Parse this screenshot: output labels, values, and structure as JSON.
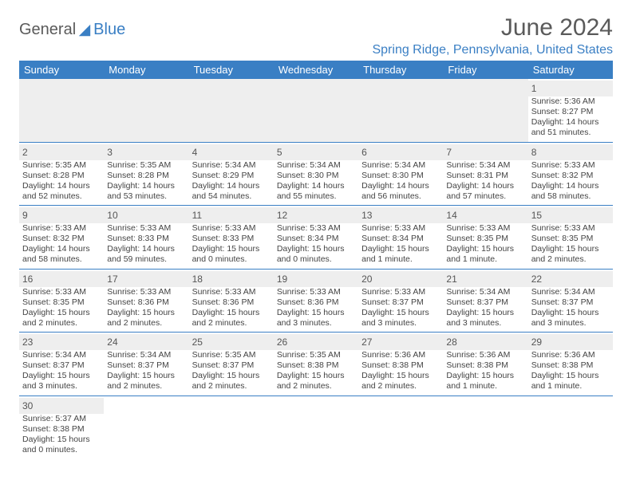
{
  "logo": {
    "general": "General",
    "blue": "Blue"
  },
  "title": "June 2024",
  "location": "Spring Ridge, Pennsylvania, United States",
  "colors": {
    "header_bg": "#3a7fc4",
    "header_text": "#ffffff",
    "daynum_bg": "#eeeeee",
    "text": "#444444",
    "row_divider": "#3a7fc4"
  },
  "weekdays": [
    "Sunday",
    "Monday",
    "Tuesday",
    "Wednesday",
    "Thursday",
    "Friday",
    "Saturday"
  ],
  "weeks": [
    [
      null,
      null,
      null,
      null,
      null,
      null,
      {
        "n": "1",
        "sr": "Sunrise: 5:36 AM",
        "ss": "Sunset: 8:27 PM",
        "d1": "Daylight: 14 hours",
        "d2": "and 51 minutes."
      }
    ],
    [
      {
        "n": "2",
        "sr": "Sunrise: 5:35 AM",
        "ss": "Sunset: 8:28 PM",
        "d1": "Daylight: 14 hours",
        "d2": "and 52 minutes."
      },
      {
        "n": "3",
        "sr": "Sunrise: 5:35 AM",
        "ss": "Sunset: 8:28 PM",
        "d1": "Daylight: 14 hours",
        "d2": "and 53 minutes."
      },
      {
        "n": "4",
        "sr": "Sunrise: 5:34 AM",
        "ss": "Sunset: 8:29 PM",
        "d1": "Daylight: 14 hours",
        "d2": "and 54 minutes."
      },
      {
        "n": "5",
        "sr": "Sunrise: 5:34 AM",
        "ss": "Sunset: 8:30 PM",
        "d1": "Daylight: 14 hours",
        "d2": "and 55 minutes."
      },
      {
        "n": "6",
        "sr": "Sunrise: 5:34 AM",
        "ss": "Sunset: 8:30 PM",
        "d1": "Daylight: 14 hours",
        "d2": "and 56 minutes."
      },
      {
        "n": "7",
        "sr": "Sunrise: 5:34 AM",
        "ss": "Sunset: 8:31 PM",
        "d1": "Daylight: 14 hours",
        "d2": "and 57 minutes."
      },
      {
        "n": "8",
        "sr": "Sunrise: 5:33 AM",
        "ss": "Sunset: 8:32 PM",
        "d1": "Daylight: 14 hours",
        "d2": "and 58 minutes."
      }
    ],
    [
      {
        "n": "9",
        "sr": "Sunrise: 5:33 AM",
        "ss": "Sunset: 8:32 PM",
        "d1": "Daylight: 14 hours",
        "d2": "and 58 minutes."
      },
      {
        "n": "10",
        "sr": "Sunrise: 5:33 AM",
        "ss": "Sunset: 8:33 PM",
        "d1": "Daylight: 14 hours",
        "d2": "and 59 minutes."
      },
      {
        "n": "11",
        "sr": "Sunrise: 5:33 AM",
        "ss": "Sunset: 8:33 PM",
        "d1": "Daylight: 15 hours",
        "d2": "and 0 minutes."
      },
      {
        "n": "12",
        "sr": "Sunrise: 5:33 AM",
        "ss": "Sunset: 8:34 PM",
        "d1": "Daylight: 15 hours",
        "d2": "and 0 minutes."
      },
      {
        "n": "13",
        "sr": "Sunrise: 5:33 AM",
        "ss": "Sunset: 8:34 PM",
        "d1": "Daylight: 15 hours",
        "d2": "and 1 minute."
      },
      {
        "n": "14",
        "sr": "Sunrise: 5:33 AM",
        "ss": "Sunset: 8:35 PM",
        "d1": "Daylight: 15 hours",
        "d2": "and 1 minute."
      },
      {
        "n": "15",
        "sr": "Sunrise: 5:33 AM",
        "ss": "Sunset: 8:35 PM",
        "d1": "Daylight: 15 hours",
        "d2": "and 2 minutes."
      }
    ],
    [
      {
        "n": "16",
        "sr": "Sunrise: 5:33 AM",
        "ss": "Sunset: 8:35 PM",
        "d1": "Daylight: 15 hours",
        "d2": "and 2 minutes."
      },
      {
        "n": "17",
        "sr": "Sunrise: 5:33 AM",
        "ss": "Sunset: 8:36 PM",
        "d1": "Daylight: 15 hours",
        "d2": "and 2 minutes."
      },
      {
        "n": "18",
        "sr": "Sunrise: 5:33 AM",
        "ss": "Sunset: 8:36 PM",
        "d1": "Daylight: 15 hours",
        "d2": "and 2 minutes."
      },
      {
        "n": "19",
        "sr": "Sunrise: 5:33 AM",
        "ss": "Sunset: 8:36 PM",
        "d1": "Daylight: 15 hours",
        "d2": "and 3 minutes."
      },
      {
        "n": "20",
        "sr": "Sunrise: 5:33 AM",
        "ss": "Sunset: 8:37 PM",
        "d1": "Daylight: 15 hours",
        "d2": "and 3 minutes."
      },
      {
        "n": "21",
        "sr": "Sunrise: 5:34 AM",
        "ss": "Sunset: 8:37 PM",
        "d1": "Daylight: 15 hours",
        "d2": "and 3 minutes."
      },
      {
        "n": "22",
        "sr": "Sunrise: 5:34 AM",
        "ss": "Sunset: 8:37 PM",
        "d1": "Daylight: 15 hours",
        "d2": "and 3 minutes."
      }
    ],
    [
      {
        "n": "23",
        "sr": "Sunrise: 5:34 AM",
        "ss": "Sunset: 8:37 PM",
        "d1": "Daylight: 15 hours",
        "d2": "and 3 minutes."
      },
      {
        "n": "24",
        "sr": "Sunrise: 5:34 AM",
        "ss": "Sunset: 8:37 PM",
        "d1": "Daylight: 15 hours",
        "d2": "and 2 minutes."
      },
      {
        "n": "25",
        "sr": "Sunrise: 5:35 AM",
        "ss": "Sunset: 8:37 PM",
        "d1": "Daylight: 15 hours",
        "d2": "and 2 minutes."
      },
      {
        "n": "26",
        "sr": "Sunrise: 5:35 AM",
        "ss": "Sunset: 8:38 PM",
        "d1": "Daylight: 15 hours",
        "d2": "and 2 minutes."
      },
      {
        "n": "27",
        "sr": "Sunrise: 5:36 AM",
        "ss": "Sunset: 8:38 PM",
        "d1": "Daylight: 15 hours",
        "d2": "and 2 minutes."
      },
      {
        "n": "28",
        "sr": "Sunrise: 5:36 AM",
        "ss": "Sunset: 8:38 PM",
        "d1": "Daylight: 15 hours",
        "d2": "and 1 minute."
      },
      {
        "n": "29",
        "sr": "Sunrise: 5:36 AM",
        "ss": "Sunset: 8:38 PM",
        "d1": "Daylight: 15 hours",
        "d2": "and 1 minute."
      }
    ],
    [
      {
        "n": "30",
        "sr": "Sunrise: 5:37 AM",
        "ss": "Sunset: 8:38 PM",
        "d1": "Daylight: 15 hours",
        "d2": "and 0 minutes."
      },
      null,
      null,
      null,
      null,
      null,
      null
    ]
  ]
}
